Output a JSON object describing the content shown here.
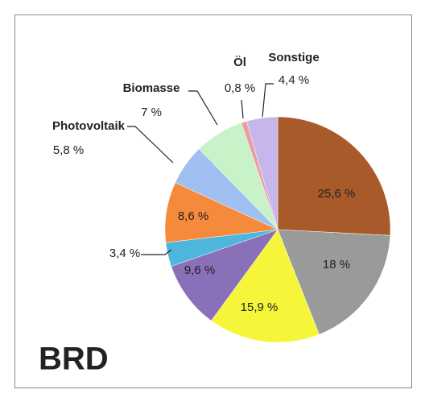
{
  "chart_data": {
    "type": "pie",
    "title": "BRD",
    "categories": [
      null,
      null,
      null,
      null,
      null,
      null,
      "Photovoltaik",
      "Biomasse",
      "Öl",
      "Sonstige"
    ],
    "values": [
      25.6,
      18,
      15.9,
      9.6,
      3.4,
      8.6,
      5.8,
      7,
      0.8,
      4.4
    ],
    "value_labels": [
      "25,6 %",
      "18 %",
      "15,9 %",
      "9,6 %",
      "3,4 %",
      "8,6 %",
      "5,8 %",
      "7 %",
      "0,8 %",
      "4,4 %"
    ],
    "colors": [
      "#a85a2a",
      "#9a9a9a",
      "#f5f53a",
      "#8a70b8",
      "#4cb6dc",
      "#f58a3c",
      "#9fc0f0",
      "#c8f2c8",
      "#e8a0a0",
      "#c6b6ec"
    ]
  }
}
